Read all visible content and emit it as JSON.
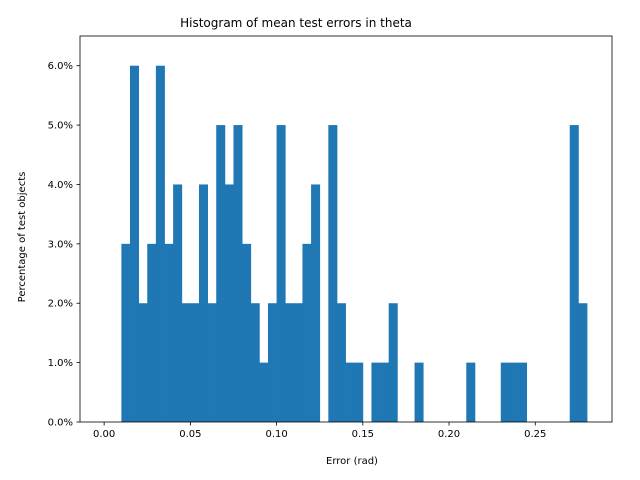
{
  "chart_data": {
    "type": "bar",
    "title": "Histogram of mean test errors in theta",
    "xlabel": "Error (rad)",
    "ylabel": "Percentage of test objects",
    "xlim": [
      -0.014,
      0.2945
    ],
    "ylim": [
      0,
      0.065
    ],
    "bin_width": 0.005,
    "x_ticks": [
      0.0,
      0.05,
      0.1,
      0.15,
      0.2,
      0.25
    ],
    "x_tick_labels": [
      "0.00",
      "0.05",
      "0.10",
      "0.15",
      "0.20",
      "0.25"
    ],
    "y_ticks": [
      0.0,
      0.01,
      0.02,
      0.03,
      0.04,
      0.05,
      0.06
    ],
    "y_tick_labels": [
      "0.0%",
      "1.0%",
      "2.0%",
      "3.0%",
      "4.0%",
      "5.0%",
      "6.0%"
    ],
    "grid": false,
    "bar_color": "#1f77b4",
    "bins": [
      {
        "x": 0.01,
        "value": 0.03
      },
      {
        "x": 0.015,
        "value": 0.06
      },
      {
        "x": 0.02,
        "value": 0.02
      },
      {
        "x": 0.025,
        "value": 0.03
      },
      {
        "x": 0.03,
        "value": 0.06
      },
      {
        "x": 0.035,
        "value": 0.03
      },
      {
        "x": 0.04,
        "value": 0.04
      },
      {
        "x": 0.045,
        "value": 0.02
      },
      {
        "x": 0.05,
        "value": 0.02
      },
      {
        "x": 0.055,
        "value": 0.04
      },
      {
        "x": 0.06,
        "value": 0.02
      },
      {
        "x": 0.065,
        "value": 0.05
      },
      {
        "x": 0.07,
        "value": 0.04
      },
      {
        "x": 0.075,
        "value": 0.05
      },
      {
        "x": 0.08,
        "value": 0.03
      },
      {
        "x": 0.085,
        "value": 0.02
      },
      {
        "x": 0.09,
        "value": 0.01
      },
      {
        "x": 0.095,
        "value": 0.02
      },
      {
        "x": 0.1,
        "value": 0.05
      },
      {
        "x": 0.105,
        "value": 0.02
      },
      {
        "x": 0.11,
        "value": 0.02
      },
      {
        "x": 0.115,
        "value": 0.03
      },
      {
        "x": 0.12,
        "value": 0.04
      },
      {
        "x": 0.13,
        "value": 0.05
      },
      {
        "x": 0.135,
        "value": 0.02
      },
      {
        "x": 0.14,
        "value": 0.01
      },
      {
        "x": 0.145,
        "value": 0.01
      },
      {
        "x": 0.155,
        "value": 0.01
      },
      {
        "x": 0.16,
        "value": 0.01
      },
      {
        "x": 0.165,
        "value": 0.02
      },
      {
        "x": 0.18,
        "value": 0.01
      },
      {
        "x": 0.21,
        "value": 0.01
      },
      {
        "x": 0.23,
        "value": 0.01
      },
      {
        "x": 0.235,
        "value": 0.01
      },
      {
        "x": 0.24,
        "value": 0.01
      },
      {
        "x": 0.27,
        "value": 0.05
      },
      {
        "x": 0.275,
        "value": 0.02
      }
    ]
  }
}
